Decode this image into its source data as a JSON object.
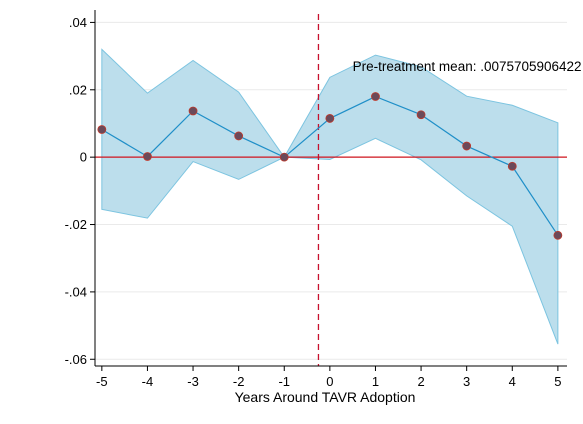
{
  "chart_data": {
    "type": "line",
    "xlabel": "Years Around TAVR Adoption",
    "ylabel": "",
    "x": [
      -5,
      -4,
      -3,
      -2,
      -1,
      0,
      1,
      2,
      3,
      4,
      5
    ],
    "x_ticks": [
      "-5",
      "-4",
      "-3",
      "-2",
      "-1",
      "0",
      "1",
      "2",
      "3",
      "4",
      "5"
    ],
    "y_ticks": [
      {
        "value": 0.04,
        "label": ".04"
      },
      {
        "value": 0.02,
        "label": ".02"
      },
      {
        "value": 0.0,
        "label": "0"
      },
      {
        "value": -0.02,
        "label": "-.02"
      },
      {
        "value": -0.04,
        "label": "-.04"
      },
      {
        "value": -0.06,
        "label": "-.06"
      }
    ],
    "xlim": [
      -5.15,
      5.2
    ],
    "ylim": [
      -0.062,
      0.0425
    ],
    "series": [
      {
        "values": [
          0.0082,
          0.0002,
          0.0137,
          0.0063,
          0.0,
          0.0115,
          0.018,
          0.0126,
          0.0033,
          -0.0027,
          -0.0232
        ],
        "ci_upper": [
          0.032,
          0.019,
          0.0287,
          0.0193,
          0.0,
          0.0237,
          0.0303,
          0.0268,
          0.0181,
          0.0154,
          0.0102
        ],
        "ci_lower": [
          -0.0155,
          -0.0181,
          -0.0013,
          -0.0066,
          0.0,
          -0.0007,
          0.0056,
          -0.0008,
          -0.0115,
          -0.0205,
          -0.0555
        ]
      }
    ],
    "reference_line_y": 0,
    "reference_line_x": -0.25,
    "annotation": {
      "text": "Pre-treatment mean: .0075705906422",
      "x": 0.5,
      "y": 0.0267
    },
    "grid": true,
    "colors": {
      "ci_fill": "#bcdeec",
      "ci_edge": "#7cc4e0",
      "line": "#1f8fc8",
      "marker": "#6b4a5a",
      "marker_edge": "#c0392b",
      "zero_line": "#d0141e",
      "vline": "#c8102e"
    }
  }
}
